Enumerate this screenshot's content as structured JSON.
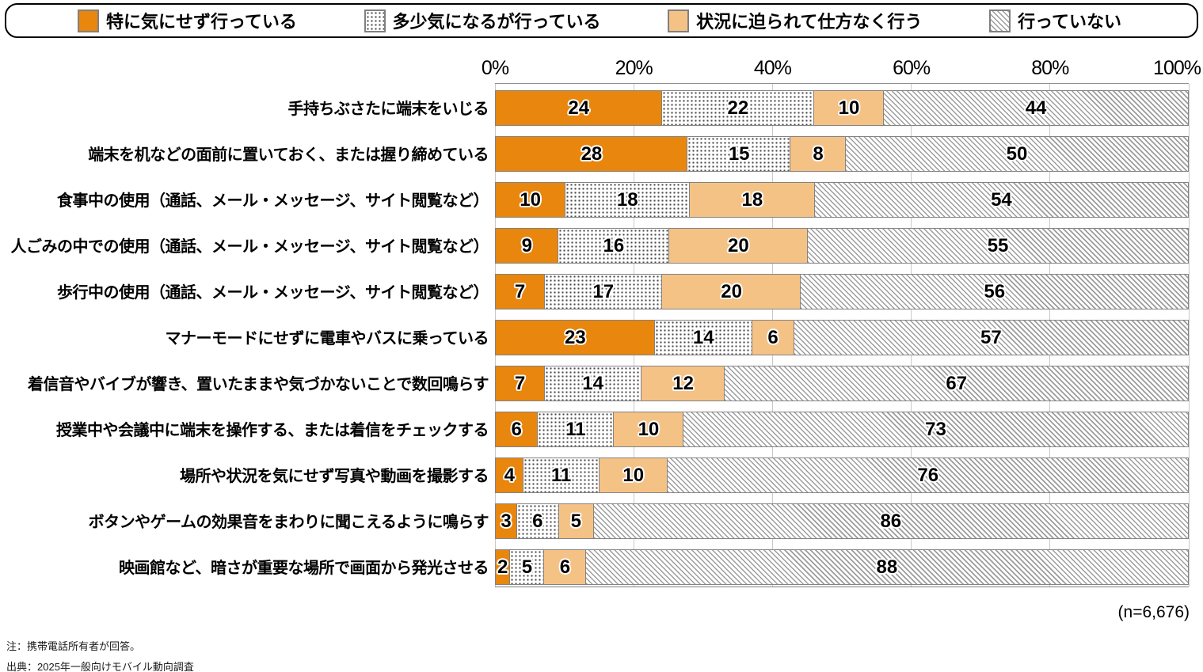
{
  "legend": {
    "items": [
      {
        "label": "特に気にせず行っている",
        "pattern": "solid-orange"
      },
      {
        "label": "多少気になるが行っている",
        "pattern": "dots"
      },
      {
        "label": "状況に迫られて仕方なく行う",
        "pattern": "solid-tan"
      },
      {
        "label": "行っていない",
        "pattern": "diagonal-hatch"
      }
    ]
  },
  "axis": {
    "tick_labels": [
      "0%",
      "20%",
      "40%",
      "60%",
      "80%",
      "100%"
    ],
    "tick_values": [
      0,
      20,
      40,
      60,
      80,
      100
    ]
  },
  "chart_data": {
    "type": "bar",
    "orientation": "horizontal",
    "stacked": true,
    "grid": true,
    "legend_position": "top",
    "xlim": [
      0,
      100
    ],
    "x_tick_labels": [
      "0%",
      "20%",
      "40%",
      "60%",
      "80%",
      "100%"
    ],
    "categories": [
      "手持ちぶさたに端末をいじる",
      "端末を机などの面前に置いておく、または握り締めている",
      "食事中の使用（通話、メール・メッセージ、サイト閲覧など）",
      "人ごみの中での使用（通話、メール・メッセージ、サイト閲覧など）",
      "歩行中の使用（通話、メール・メッセージ、サイト閲覧など）",
      "マナーモードにせずに電車やバスに乗っている",
      "着信音やバイブが響き、置いたままや気づかないことで数回鳴らす",
      "授業中や会議中に端末を操作する、または着信をチェックする",
      "場所や状況を気にせず写真や動画を撮影する",
      "ボタンやゲームの効果音をまわりに聞こえるように鳴らす",
      "映画館など、暗さが重要な場所で画面から発光させる"
    ],
    "series": [
      {
        "name": "特に気にせず行っている",
        "pattern": "solid-orange",
        "color": "#E8860D",
        "values": [
          24,
          28,
          10,
          9,
          7,
          23,
          7,
          6,
          4,
          3,
          2
        ]
      },
      {
        "name": "多少気になるが行っている",
        "pattern": "dots",
        "color": "#FFFFFF",
        "values": [
          22,
          15,
          18,
          16,
          17,
          14,
          14,
          11,
          11,
          6,
          5
        ]
      },
      {
        "name": "状況に迫られて仕方なく行う",
        "pattern": "solid-tan",
        "color": "#F5C286",
        "values": [
          10,
          8,
          18,
          20,
          20,
          6,
          12,
          10,
          10,
          5,
          6
        ]
      },
      {
        "name": "行っていない",
        "pattern": "diagonal-hatch",
        "color": "#9C9C9C",
        "values": [
          44,
          50,
          54,
          55,
          56,
          57,
          67,
          73,
          76,
          86,
          88
        ]
      }
    ],
    "sample_size_label": "(n=6,676)"
  },
  "footer": {
    "n_label": "(n=6,676)",
    "note": "注：携帯電話所有者が回答。",
    "source": "出典：2025年一般向けモバイル動向調査"
  },
  "colors": {
    "accent_orange": "#E8860D",
    "accent_tan": "#F5C286",
    "hatch_line": "#9C9C9C",
    "dot": "#4A4A4A",
    "gridline": "#C9C9C9",
    "segment_border": "#838383"
  }
}
